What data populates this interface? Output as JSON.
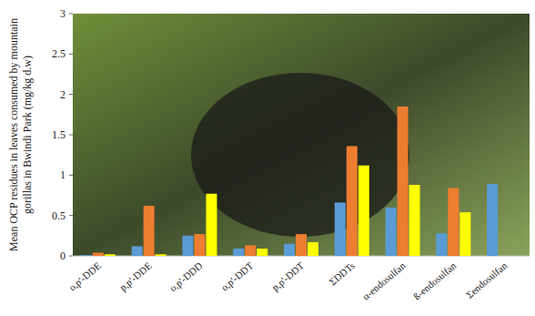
{
  "chart_data": {
    "type": "bar",
    "y_label": "Mean OCP residues  in leaves consumed by mountain gorillas in Bwindi Park (mg/kg d.w)",
    "categories": [
      "o,p'-DDE",
      "p,p'-DDE",
      "o,p'-DDD",
      "o,p'-DDT",
      "p,p'-DDT",
      "ΣDDTs",
      "α-endosulfan",
      "ß-endosulfan",
      "Σendosulfan"
    ],
    "series": [
      {
        "color": "#5b9bd5",
        "values": [
          0.01,
          0.12,
          0.25,
          0.09,
          0.15,
          0.66,
          0.6,
          0.28,
          0.89
        ]
      },
      {
        "color": "#ed7d31",
        "values": [
          0.04,
          0.62,
          0.27,
          0.13,
          0.27,
          1.36,
          1.85,
          0.84,
          null
        ]
      },
      {
        "color": "#ffff00",
        "values": [
          0.02,
          0.02,
          0.77,
          0.09,
          0.17,
          1.12,
          0.88,
          0.54,
          null
        ]
      }
    ],
    "ylim": [
      0,
      3
    ],
    "yticks": [
      0,
      0.5,
      1,
      1.5,
      2,
      2.5,
      3
    ],
    "grid": false
  }
}
